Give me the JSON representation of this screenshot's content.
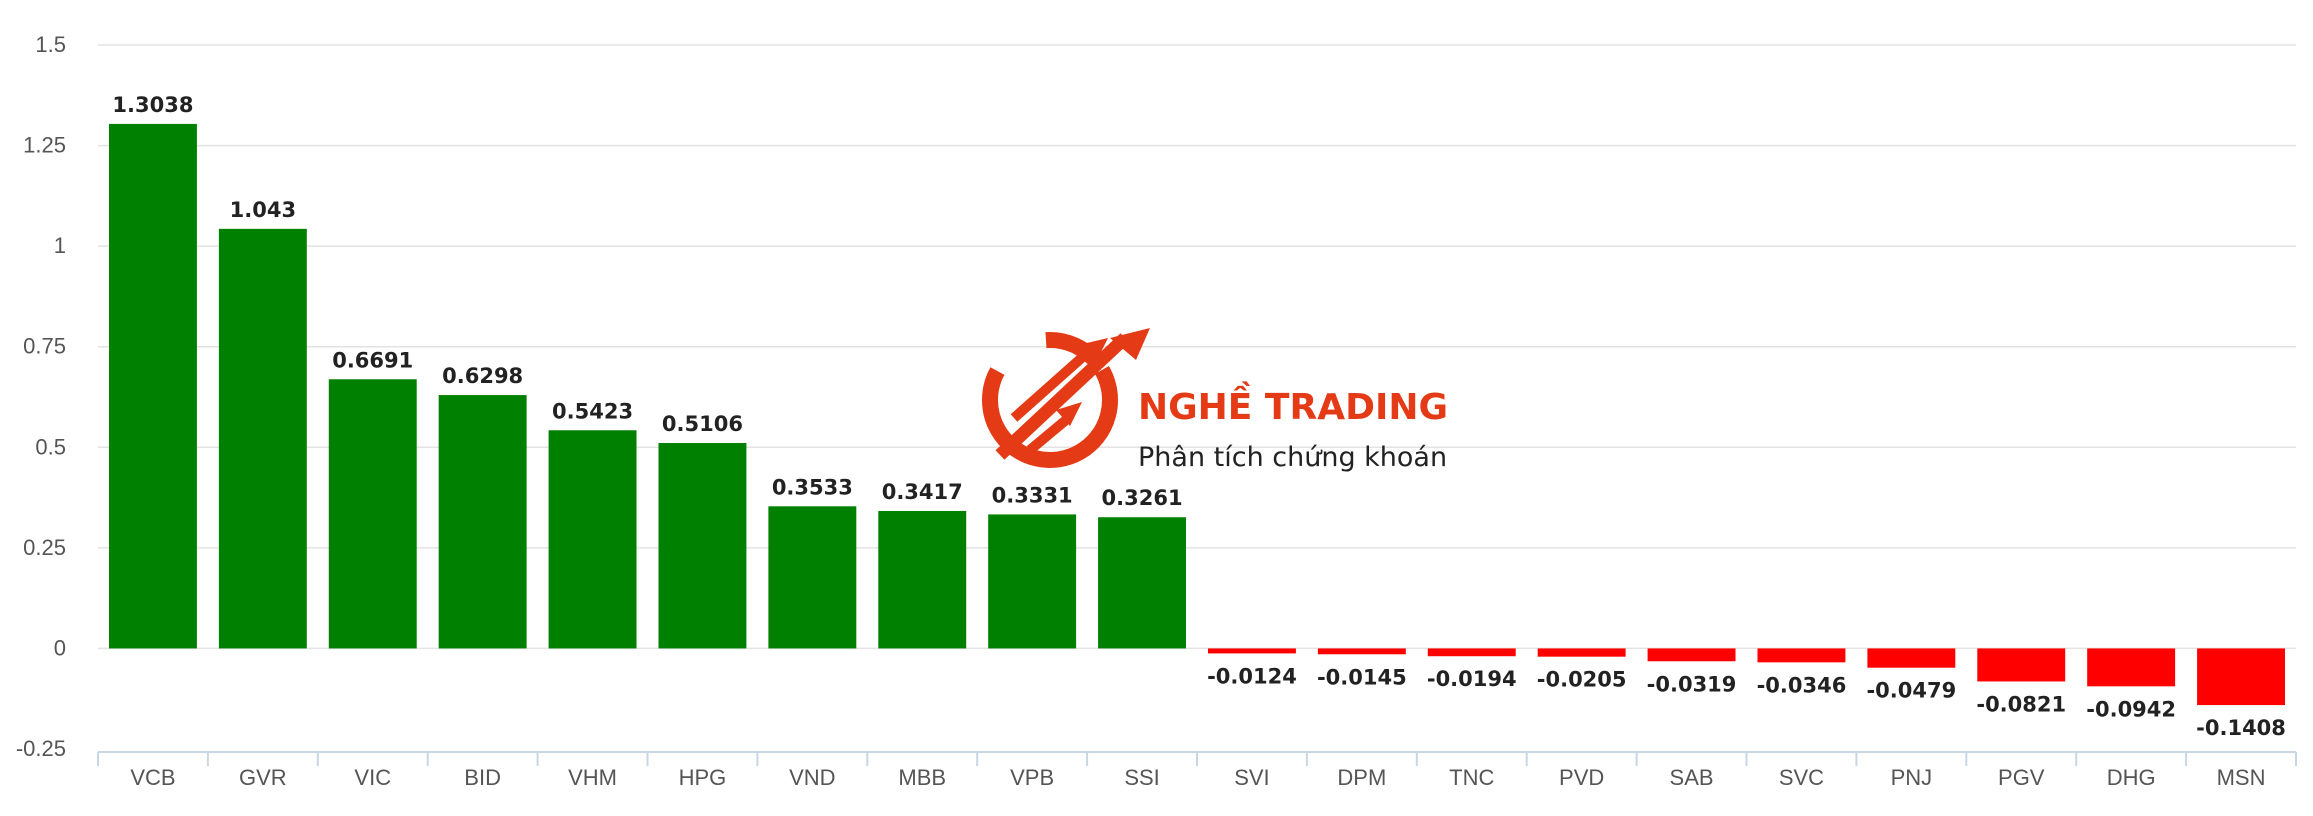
{
  "chart_data": {
    "type": "bar",
    "title": "",
    "xlabel": "",
    "ylabel": "",
    "ylim": [
      -0.25,
      1.5
    ],
    "y_ticks": [
      "-0.25",
      "0",
      "0.25",
      "0.5",
      "0.75",
      "1",
      "1.25",
      "1.5"
    ],
    "y_tick_values": [
      -0.25,
      0,
      0.25,
      0.5,
      0.75,
      1,
      1.25,
      1.5
    ],
    "categories": [
      "VCB",
      "GVR",
      "VIC",
      "BID",
      "VHM",
      "HPG",
      "VND",
      "MBB",
      "VPB",
      "SSI",
      "SVI",
      "DPM",
      "TNC",
      "PVD",
      "SAB",
      "SVC",
      "PNJ",
      "PGV",
      "DHG",
      "MSN"
    ],
    "values": [
      1.3038,
      1.043,
      0.6691,
      0.6298,
      0.5423,
      0.5106,
      0.3533,
      0.3417,
      0.3331,
      0.3261,
      -0.0124,
      -0.0145,
      -0.0194,
      -0.0205,
      -0.0319,
      -0.0346,
      -0.0479,
      -0.0821,
      -0.0942,
      -0.1408
    ],
    "value_labels": [
      "1.3038",
      "1.043",
      "0.6691",
      "0.6298",
      "0.5423",
      "0.5106",
      "0.3533",
      "0.3417",
      "0.3331",
      "0.3261",
      "-0.0124",
      "-0.0145",
      "-0.0194",
      "-0.0205",
      "-0.0319",
      "-0.0346",
      "-0.0479",
      "-0.0821",
      "-0.0942",
      "-0.1408"
    ],
    "grid": true,
    "legend": "none",
    "colors": {
      "positive": "#008000",
      "negative": "#ff0000"
    }
  },
  "watermark": {
    "brand_name": "NGHỀ TRADING",
    "tagline": "Phân tích chứng khoán",
    "logo_icon": "trading-arrows-logo-icon",
    "color": "#e43a16"
  }
}
